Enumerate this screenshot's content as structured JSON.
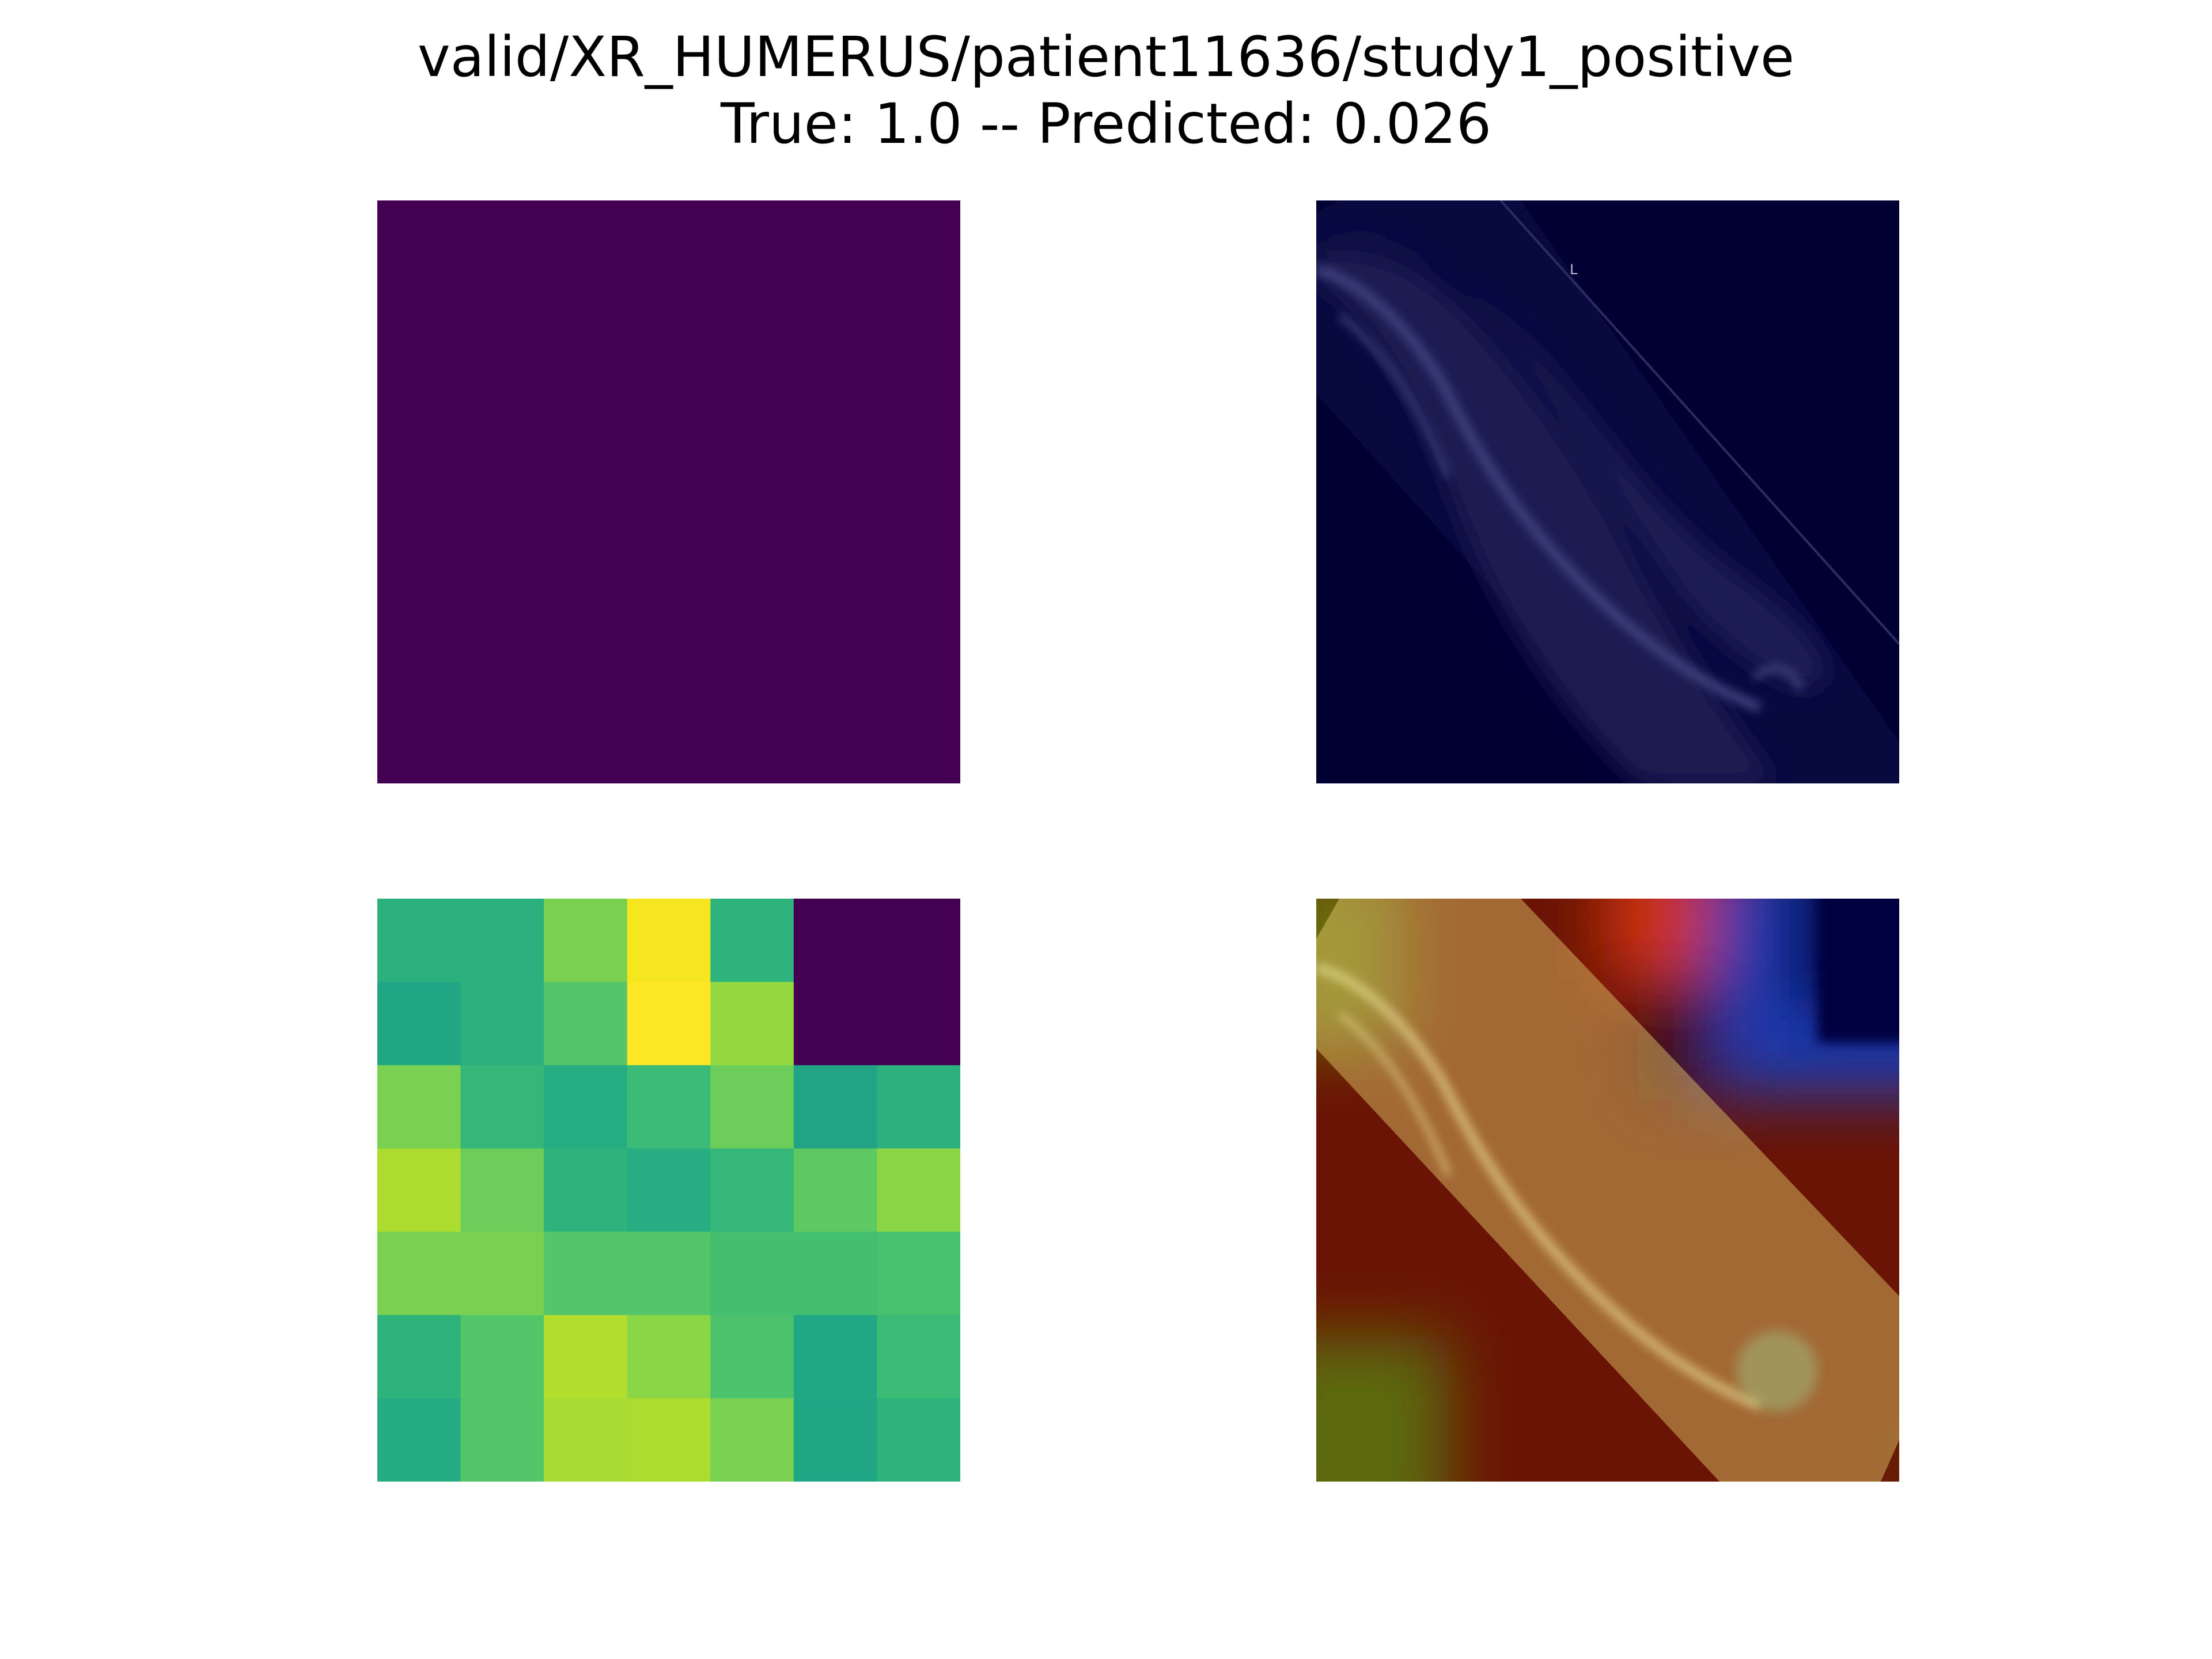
{
  "title": {
    "line1": "valid/XR_HUMERUS/patient11636/study1_positive",
    "line2": "True: 1.0 -- Predicted: 0.026"
  },
  "colors": {
    "background": "#ffffff",
    "attention_fill": "#440154",
    "xray_background": "#000033",
    "xray_marker": "#b8bad6"
  },
  "panels": {
    "xray": {
      "marker": "L"
    },
    "heatmap_grid": {
      "rows": 7,
      "cols": 7,
      "colors": [
        [
          "#2cb17e",
          "#2cb17e",
          "#7ad151",
          "#f6e620",
          "#2eb37c",
          "#440154",
          "#440154"
        ],
        [
          "#21a685",
          "#2cb17e",
          "#54c568",
          "#fde725",
          "#95d840",
          "#440154",
          "#440154"
        ],
        [
          "#7ad151",
          "#35b779",
          "#26ad81",
          "#3bbb75",
          "#6ccd5a",
          "#21a386",
          "#2cb17e"
        ],
        [
          "#addc30",
          "#6ccd5a",
          "#2eb37c",
          "#27ad81",
          "#35b779",
          "#5ec962",
          "#8bd646"
        ],
        [
          "#7ad151",
          "#7ad151",
          "#54c568",
          "#54c568",
          "#44bf70",
          "#44bf70",
          "#48c16e"
        ],
        [
          "#2eb37c",
          "#54c568",
          "#b2dd2d",
          "#8bd646",
          "#4cc26c",
          "#22a785",
          "#3bbb75"
        ],
        [
          "#25ac82",
          "#54c568",
          "#a8db34",
          "#addc30",
          "#7ad151",
          "#21a685",
          "#2eb37c"
        ]
      ]
    }
  }
}
